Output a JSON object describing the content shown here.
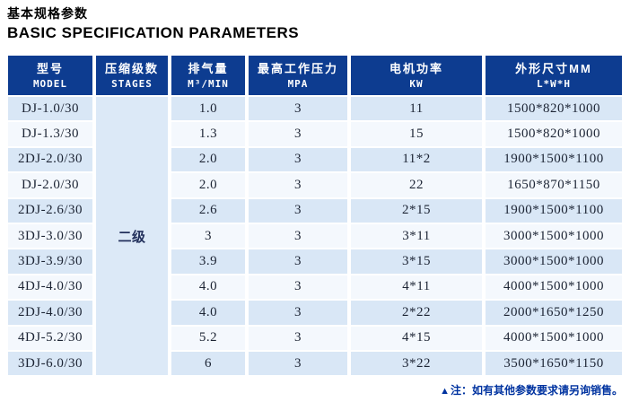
{
  "page": {
    "title_zh": "基本规格参数",
    "title_en": "BASIC SPECIFICATION PARAMETERS",
    "note_marker": "▲",
    "note_text": "注：如有其他参数要求请另询销售。"
  },
  "colors": {
    "header_bg": "#0d3c90",
    "header_text": "#ffffff",
    "row_odd_bg": "#d9e7f6",
    "row_even_bg": "#f4f8fd",
    "stages_bg": "#dce9f7",
    "body_text": "#1c2434",
    "stages_text": "#22305c",
    "note_color": "#0033a0",
    "title_color": "#000000"
  },
  "table": {
    "headers": [
      {
        "key": "model",
        "zh": "型号",
        "sub": "MODEL"
      },
      {
        "key": "stages",
        "zh": "压缩级数",
        "sub": "STAGES"
      },
      {
        "key": "displacement",
        "zh": "排气量",
        "sub": "M³/MIN"
      },
      {
        "key": "pressure",
        "zh": "最高工作压力",
        "sub": "MPA"
      },
      {
        "key": "power",
        "zh": "电机功率",
        "sub": "KW"
      },
      {
        "key": "dimensions",
        "zh": "外形尺寸MM",
        "sub": "L*W*H"
      }
    ],
    "stages_value": "二级",
    "rows": [
      {
        "model": "DJ-1.0/30",
        "displacement": "1.0",
        "pressure": "3",
        "power": "11",
        "dimensions": "1500*820*1000"
      },
      {
        "model": "DJ-1.3/30",
        "displacement": "1.3",
        "pressure": "3",
        "power": "15",
        "dimensions": "1500*820*1000"
      },
      {
        "model": "2DJ-2.0/30",
        "displacement": "2.0",
        "pressure": "3",
        "power": "11*2",
        "dimensions": "1900*1500*1100"
      },
      {
        "model": "DJ-2.0/30",
        "displacement": "2.0",
        "pressure": "3",
        "power": "22",
        "dimensions": "1650*870*1150"
      },
      {
        "model": "2DJ-2.6/30",
        "displacement": "2.6",
        "pressure": "3",
        "power": "2*15",
        "dimensions": "1900*1500*1100"
      },
      {
        "model": "3DJ-3.0/30",
        "displacement": "3",
        "pressure": "3",
        "power": "3*11",
        "dimensions": "3000*1500*1000"
      },
      {
        "model": "3DJ-3.9/30",
        "displacement": "3.9",
        "pressure": "3",
        "power": "3*15",
        "dimensions": "3000*1500*1000"
      },
      {
        "model": "4DJ-4.0/30",
        "displacement": "4.0",
        "pressure": "3",
        "power": "4*11",
        "dimensions": "4000*1500*1000"
      },
      {
        "model": "2DJ-4.0/30",
        "displacement": "4.0",
        "pressure": "3",
        "power": "2*22",
        "dimensions": "2000*1650*1250"
      },
      {
        "model": "4DJ-5.2/30",
        "displacement": "5.2",
        "pressure": "3",
        "power": "4*15",
        "dimensions": "4000*1500*1000"
      },
      {
        "model": "3DJ-6.0/30",
        "displacement": "6",
        "pressure": "3",
        "power": "3*22",
        "dimensions": "3500*1650*1150"
      }
    ]
  }
}
